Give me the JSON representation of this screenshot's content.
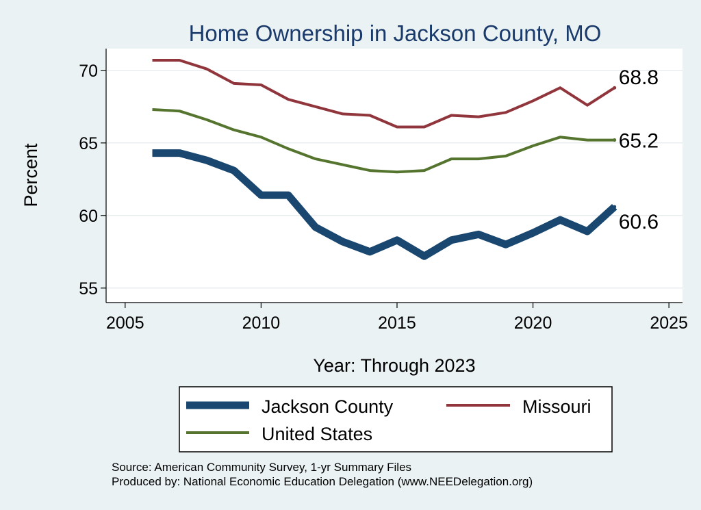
{
  "chart_data": {
    "type": "line",
    "title": "Home Ownership in Jackson County, MO",
    "xlabel": "Year: Through 2023",
    "ylabel": "Percent",
    "xlim": [
      2004.3,
      2025.5
    ],
    "ylim": [
      54.0,
      71.5
    ],
    "xticks": [
      2005,
      2010,
      2015,
      2020,
      2025
    ],
    "yticks": [
      55,
      60,
      65,
      70
    ],
    "x": [
      2006,
      2007,
      2008,
      2009,
      2010,
      2011,
      2012,
      2013,
      2014,
      2015,
      2016,
      2017,
      2018,
      2019,
      2020,
      2021,
      2022,
      2023
    ],
    "series": [
      {
        "name": "Jackson County",
        "color": "#1a476f",
        "width": 11,
        "values": [
          64.3,
          64.3,
          63.8,
          63.1,
          61.4,
          61.4,
          59.2,
          58.2,
          57.5,
          58.3,
          57.2,
          58.3,
          58.7,
          58.0,
          58.8,
          59.7,
          58.9,
          60.6
        ],
        "end_label": "60.6"
      },
      {
        "name": "Missouri",
        "color": "#90353b",
        "width": 4,
        "values": [
          70.7,
          70.7,
          70.1,
          69.1,
          69.0,
          68.0,
          67.5,
          67.0,
          66.9,
          66.1,
          66.1,
          66.9,
          66.8,
          67.1,
          67.9,
          68.8,
          67.6,
          68.8
        ],
        "end_label": "68.8"
      },
      {
        "name": "United States",
        "color": "#55752f",
        "width": 4,
        "values": [
          67.3,
          67.2,
          66.6,
          65.9,
          65.4,
          64.6,
          63.9,
          63.5,
          63.1,
          63.0,
          63.1,
          63.9,
          63.9,
          64.1,
          64.8,
          65.4,
          65.2,
          65.2
        ],
        "end_label": "65.2"
      }
    ],
    "legend": {
      "position": "bottom",
      "entries": [
        "Jackson County",
        "Missouri",
        "United States"
      ]
    },
    "grid": true
  },
  "footer": {
    "source": "Source: American Community Survey, 1-yr Summary Files",
    "produced": "Produced by: National Economic Education Delegation (www.NEEDelegation.org)"
  }
}
